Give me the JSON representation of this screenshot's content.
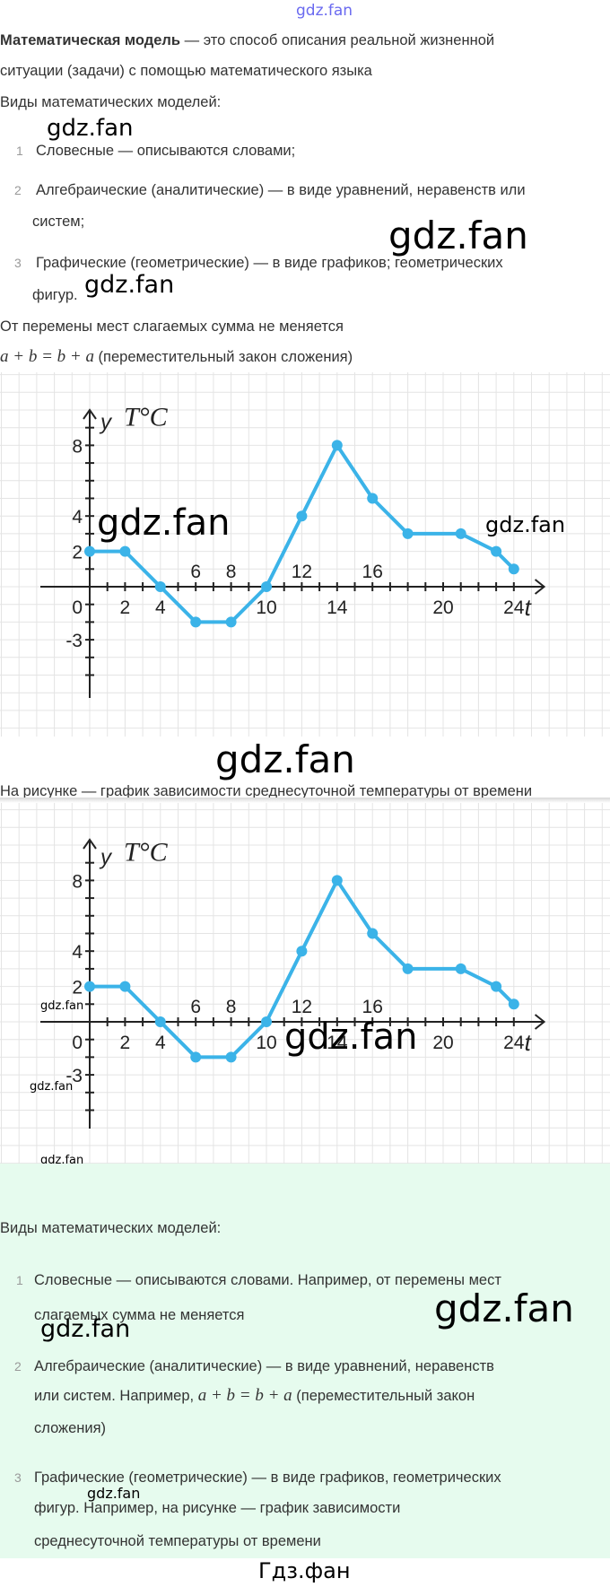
{
  "watermarks": {
    "top": "gdz.fan",
    "w1": "gdz.fan",
    "w2": "gdz.fan",
    "w3": "gdz.fan",
    "c1a": "gdz.fan",
    "c1b": "gdz.fan",
    "mid": "gdz.fan",
    "c2a": "gdz.fan",
    "c2b": "gdz.fan",
    "c2c": "gdz.fan",
    "c2big": "gdz.fan",
    "g1": "gdz.fan",
    "g2": "gdz.fan",
    "g3": "gdz.fan",
    "bottom": "Гдз.фан"
  },
  "intro": {
    "term": "Математическая модель",
    "line1_rest": " — это способ описания реальной жизненной",
    "line2": "ситуации (задачи) с помощью математического языка",
    "types_heading": "Виды математических моделей:",
    "items": [
      {
        "num": "1",
        "lines": [
          "Словесные — описываются словами;"
        ]
      },
      {
        "num": "2",
        "lines": [
          "Алгебраические (аналитические) — в виде уравнений, неравенств или",
          "систем;"
        ]
      },
      {
        "num": "3",
        "lines": [
          "Графические (геометрические) — в виде графиков; геометрических",
          "фигур."
        ]
      }
    ],
    "example_text": "От перемены мест слагаемых сумма не меняется",
    "formula": "a + b = b + a",
    "formula_note": " (переместительный закон сложения)",
    "caption": "На рисунке — график зависимости среднесуточной температуры от времени"
  },
  "chart_data": [
    {
      "type": "line",
      "ylabel": "y",
      "unit_label": "T°C",
      "xlabel": "t",
      "x": [
        0,
        2,
        4,
        6,
        8,
        10,
        12,
        14,
        16,
        18,
        21,
        23,
        24
      ],
      "y": [
        2,
        2,
        0,
        -2,
        -2,
        0,
        4,
        8,
        5,
        3,
        3,
        2,
        1
      ],
      "x_tick_labels": [
        "2",
        "4",
        "6",
        "8",
        "10",
        "12",
        "14",
        "16",
        "20",
        "24"
      ],
      "y_tick_labels": [
        "8",
        "4",
        "2",
        "0",
        "-3"
      ],
      "grid": true,
      "color": "#3bb3e8"
    },
    {
      "type": "line",
      "ylabel": "y",
      "unit_label": "T°C",
      "xlabel": "t",
      "x": [
        0,
        2,
        4,
        6,
        8,
        10,
        12,
        14,
        16,
        18,
        21,
        23,
        24
      ],
      "y": [
        2,
        2,
        0,
        -2,
        -2,
        0,
        4,
        8,
        5,
        3,
        3,
        2,
        1
      ],
      "x_tick_labels": [
        "2",
        "4",
        "6",
        "8",
        "10",
        "12",
        "14",
        "16",
        "20",
        "24"
      ],
      "y_tick_labels": [
        "8",
        "4",
        "2",
        "0",
        "-3"
      ],
      "grid": true,
      "color": "#3bb3e8"
    }
  ],
  "answer": {
    "background": "#e6fbee",
    "heading": "Виды математических моделей:",
    "items": [
      {
        "num": "1",
        "lines": [
          "Словесные — описываются словами. Например, от перемены мест",
          "слагаемых сумма не меняется"
        ]
      },
      {
        "num": "2",
        "lines": [
          "Алгебраические (аналитические) — в виде уравнений, неравенств",
          "или систем. Например, ",
          "сложения)"
        ],
        "formula": "a + b = b + a",
        "after_formula": " (переместительный закон"
      },
      {
        "num": "3",
        "lines": [
          "Графические (геометрические) — в виде графиков, геометрических",
          "фигур. Например, на рисунке — график зависимости",
          "среднесуточной температуры от времени"
        ]
      }
    ]
  }
}
